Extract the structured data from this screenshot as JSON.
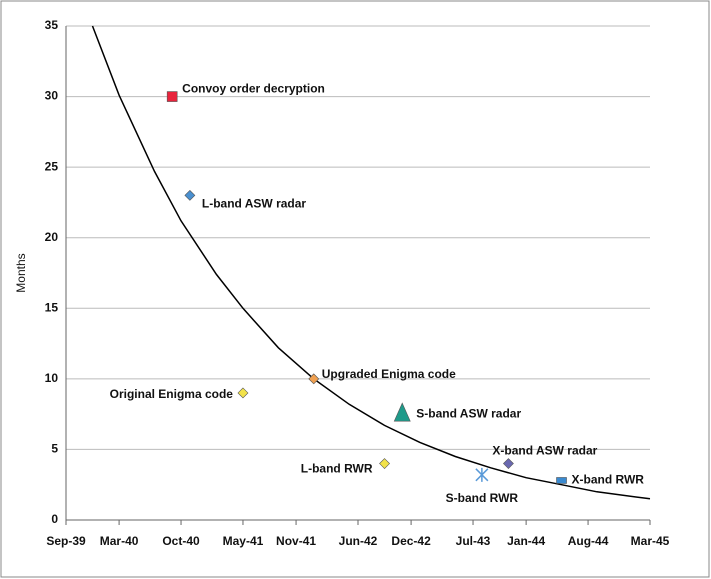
{
  "chart_data": {
    "type": "scatter",
    "ylabel": "Months",
    "xticks": [
      "Sep-39",
      "Mar-40",
      "Oct-40",
      "May-41",
      "Nov-41",
      "Jun-42",
      "Dec-42",
      "Jul-43",
      "Jan-44",
      "Aug-44",
      "Mar-45"
    ],
    "xlim": [
      "Sep-39",
      "Mar-45"
    ],
    "ylim": [
      0,
      35
    ],
    "yticks": [
      0,
      5,
      10,
      15,
      20,
      25,
      30,
      35
    ],
    "grid": true,
    "points": [
      {
        "name": "Convoy order decryption",
        "x": "Sep-40",
        "y": 30,
        "color": "#e8243c",
        "marker": "square"
      },
      {
        "name": "L-band ASW radar",
        "x": "Nov-40",
        "y": 23,
        "color": "#4a90d0",
        "marker": "diamond"
      },
      {
        "name": "Original Enigma code",
        "x": "May-41",
        "y": 9,
        "color": "#f2e24a",
        "marker": "diamond"
      },
      {
        "name": "Upgraded Enigma code",
        "x": "Jan-42",
        "y": 10,
        "color": "#f0a050",
        "marker": "diamond"
      },
      {
        "name": "S-band ASW radar",
        "x": "Nov-42",
        "y": 7.5,
        "color": "#1f9a8a",
        "marker": "triangle"
      },
      {
        "name": "L-band RWR",
        "x": "Sep-42",
        "y": 4,
        "color": "#f2e24a",
        "marker": "diamond"
      },
      {
        "name": "S-band RWR",
        "x": "Aug-43",
        "y": 3.2,
        "color": "#5a9ad8",
        "marker": "asterisk"
      },
      {
        "name": "X-band ASW radar",
        "x": "Nov-43",
        "y": 4,
        "color": "#6a68b0",
        "marker": "diamond"
      },
      {
        "name": "X-band RWR",
        "x": "May-44",
        "y": 2.8,
        "color": "#3a8ad0",
        "marker": "rect"
      }
    ],
    "curve": {
      "color": "#000000",
      "x": [
        "Dec-39",
        "Mar-40",
        "Jul-40",
        "Oct-40",
        "Feb-41",
        "May-41",
        "Sep-41",
        "Jan-42",
        "May-42",
        "Sep-42",
        "Jan-43",
        "May-43",
        "Sep-43",
        "Jan-44",
        "May-44",
        "Sep-44",
        "Mar-45"
      ],
      "values": [
        35.0,
        30.1,
        24.7,
        21.2,
        17.4,
        15.0,
        12.2,
        10.0,
        8.2,
        6.7,
        5.5,
        4.5,
        3.7,
        3.0,
        2.5,
        2.0,
        1.5
      ]
    }
  }
}
